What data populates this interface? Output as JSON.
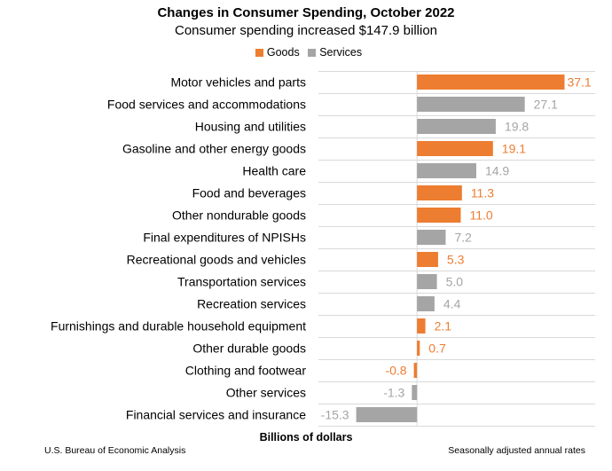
{
  "chart_data": {
    "type": "bar",
    "orientation": "horizontal",
    "title": "Changes in Consumer Spending, October 2022",
    "subtitle": "Consumer spending increased $147.9 billion",
    "xlabel": "Billions of dollars",
    "xlim": [
      -24.8,
      44.8
    ],
    "grid": "horizontal row separators",
    "legend_position": "top",
    "legend": [
      {
        "name": "Goods",
        "color": "#ED7D31"
      },
      {
        "name": "Services",
        "color": "#A5A5A5"
      }
    ],
    "categories": [
      "Motor vehicles and parts",
      "Food services and accommodations",
      "Housing and utilities",
      "Gasoline and other energy goods",
      "Health care",
      "Food and beverages",
      "Other nondurable goods",
      "Final expenditures of NPISHs",
      "Recreational goods and vehicles",
      "Transportation services",
      "Recreation services",
      "Furnishings and durable household equipment",
      "Other durable goods",
      "Clothing and footwear",
      "Other services",
      "Financial services and insurance"
    ],
    "values": [
      37.1,
      27.1,
      19.8,
      19.1,
      14.9,
      11.3,
      11.0,
      7.2,
      5.3,
      5.0,
      4.4,
      2.1,
      0.7,
      -0.8,
      -1.3,
      -15.3
    ],
    "labels": [
      "37.1",
      "27.1",
      "19.8",
      "19.1",
      "14.9",
      "11.3",
      "11.0",
      "7.2",
      "5.3",
      "5.0",
      "4.4",
      "2.1",
      "0.7",
      "-0.8",
      "-1.3",
      "-15.3"
    ],
    "types": [
      "Goods",
      "Services",
      "Services",
      "Goods",
      "Services",
      "Goods",
      "Goods",
      "Services",
      "Goods",
      "Services",
      "Services",
      "Goods",
      "Goods",
      "Goods",
      "Services",
      "Services"
    ]
  },
  "footer": {
    "source": "U.S. Bureau of Economic Analysis",
    "note": "Seasonally adjusted annual rates"
  }
}
